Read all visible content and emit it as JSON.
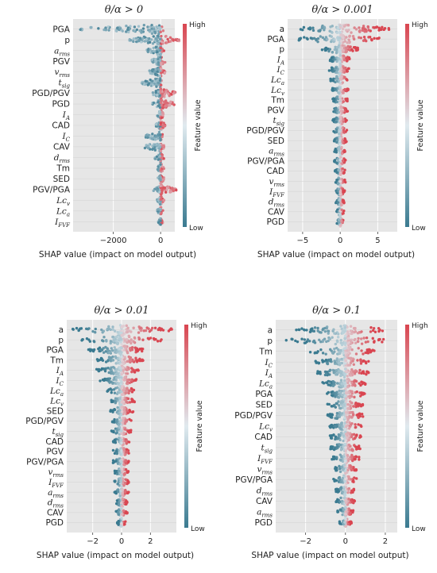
{
  "chart_data": [
    {
      "type": "scatter",
      "subtype": "shap-beeswarm",
      "title": "θ/α > 0",
      "xlabel": "SHAP value (impact on model output)",
      "xlim": [
        -3700,
        600
      ],
      "xticks": [
        -2000,
        0
      ],
      "xtick_labels": [
        "−2000",
        "0"
      ],
      "colorbar": {
        "label": "Feature value",
        "high": "High",
        "low": "Low"
      },
      "features": [
        {
          "label": "PGA",
          "spread": [
            -3500,
            200
          ]
        },
        {
          "label": "p",
          "spread": [
            -1400,
            800
          ]
        },
        {
          "label": "a_rms",
          "spread": [
            -600,
            150
          ]
        },
        {
          "label": "PGV",
          "spread": [
            -400,
            200
          ]
        },
        {
          "label": "v_rms",
          "spread": [
            -500,
            200
          ]
        },
        {
          "label": "t_sig",
          "spread": [
            -800,
            100
          ]
        },
        {
          "label": "PGD/PGV",
          "spread": [
            -350,
            650
          ]
        },
        {
          "label": "PGD",
          "spread": [
            -350,
            600
          ]
        },
        {
          "label": "I_A",
          "spread": [
            -150,
            150
          ]
        },
        {
          "label": "CAD",
          "spread": [
            -200,
            200
          ]
        },
        {
          "label": "I_C",
          "spread": [
            -650,
            100
          ]
        },
        {
          "label": "CAV",
          "spread": [
            -700,
            150
          ]
        },
        {
          "label": "d_rms",
          "spread": [
            -250,
            150
          ]
        },
        {
          "label": "Tm",
          "spread": [
            -150,
            150
          ]
        },
        {
          "label": "SED",
          "spread": [
            -150,
            150
          ]
        },
        {
          "label": "PGV/PGA",
          "spread": [
            -300,
            700
          ]
        },
        {
          "label": "Lc_v",
          "spread": [
            -150,
            150
          ]
        },
        {
          "label": "Lc_a",
          "spread": [
            -150,
            100
          ]
        },
        {
          "label": "I_FVF",
          "spread": [
            -100,
            100
          ]
        }
      ]
    },
    {
      "type": "scatter",
      "subtype": "shap-beeswarm",
      "title": "θ/α > 0.001",
      "xlabel": "SHAP value (impact on model output)",
      "xlim": [
        -7,
        7.6
      ],
      "xticks": [
        -5,
        0,
        5
      ],
      "xtick_labels": [
        "−5",
        "0",
        "5"
      ],
      "colorbar": {
        "label": "Feature value",
        "high": "High",
        "low": "Low"
      },
      "features": [
        {
          "label": "a",
          "spread": [
            -5.5,
            6.5
          ]
        },
        {
          "label": "PGA",
          "spread": [
            -6,
            5.5
          ]
        },
        {
          "label": "p",
          "spread": [
            -2.5,
            2.5
          ]
        },
        {
          "label": "I_A",
          "spread": [
            -1.5,
            1.5
          ]
        },
        {
          "label": "I_C",
          "spread": [
            -1.5,
            1.2
          ]
        },
        {
          "label": "Lc_a",
          "spread": [
            -1.3,
            1.3
          ]
        },
        {
          "label": "Lc_v",
          "spread": [
            -1.2,
            1.2
          ]
        },
        {
          "label": "Tm",
          "spread": [
            -1.0,
            1.0
          ]
        },
        {
          "label": "PGV",
          "spread": [
            -1.0,
            1.0
          ]
        },
        {
          "label": "t_sig",
          "spread": [
            -1.0,
            1.0
          ]
        },
        {
          "label": "PGD/PGV",
          "spread": [
            -0.9,
            0.9
          ]
        },
        {
          "label": "SED",
          "spread": [
            -0.9,
            0.9
          ]
        },
        {
          "label": "a_rms",
          "spread": [
            -0.8,
            0.8
          ]
        },
        {
          "label": "PGV/PGA",
          "spread": [
            -0.8,
            0.8
          ]
        },
        {
          "label": "CAD",
          "spread": [
            -0.7,
            0.7
          ]
        },
        {
          "label": "v_rms",
          "spread": [
            -0.7,
            0.7
          ]
        },
        {
          "label": "I_FVF",
          "spread": [
            -0.6,
            0.6
          ]
        },
        {
          "label": "d_rms",
          "spread": [
            -0.6,
            0.6
          ]
        },
        {
          "label": "CAV",
          "spread": [
            -0.5,
            0.5
          ]
        },
        {
          "label": "PGD",
          "spread": [
            -0.5,
            0.5
          ]
        }
      ]
    },
    {
      "type": "scatter",
      "subtype": "shap-beeswarm",
      "title": "θ/α > 0.01",
      "xlabel": "SHAP value (impact on model output)",
      "xlim": [
        -3.8,
        3.8
      ],
      "xticks": [
        -2,
        0,
        2
      ],
      "xtick_labels": [
        "−2",
        "0",
        "2"
      ],
      "colorbar": {
        "label": "Feature value",
        "high": "High",
        "low": "Low"
      },
      "features": [
        {
          "label": "a",
          "spread": [
            -3.5,
            3.5
          ]
        },
        {
          "label": "p",
          "spread": [
            -2.8,
            2.8
          ]
        },
        {
          "label": "PGA",
          "spread": [
            -2.3,
            1.5
          ]
        },
        {
          "label": "Tm",
          "spread": [
            -1.8,
            1.5
          ]
        },
        {
          "label": "I_A",
          "spread": [
            -1.8,
            1.2
          ]
        },
        {
          "label": "I_C",
          "spread": [
            -1.5,
            1.2
          ]
        },
        {
          "label": "Lc_a",
          "spread": [
            -1.0,
            1.0
          ]
        },
        {
          "label": "Lc_v",
          "spread": [
            -0.9,
            0.9
          ]
        },
        {
          "label": "SED",
          "spread": [
            -0.8,
            0.8
          ]
        },
        {
          "label": "PGD/PGV",
          "spread": [
            -0.7,
            0.7
          ]
        },
        {
          "label": "t_sig",
          "spread": [
            -0.7,
            0.7
          ]
        },
        {
          "label": "CAD",
          "spread": [
            -0.6,
            0.6
          ]
        },
        {
          "label": "PGV",
          "spread": [
            -0.6,
            0.6
          ]
        },
        {
          "label": "PGV/PGA",
          "spread": [
            -0.6,
            0.6
          ]
        },
        {
          "label": "v_rms",
          "spread": [
            -0.5,
            0.5
          ]
        },
        {
          "label": "I_FVF",
          "spread": [
            -0.5,
            0.5
          ]
        },
        {
          "label": "a_rms",
          "spread": [
            -0.5,
            0.5
          ]
        },
        {
          "label": "d_rms",
          "spread": [
            -0.4,
            0.4
          ]
        },
        {
          "label": "CAV",
          "spread": [
            -0.4,
            0.4
          ]
        },
        {
          "label": "PGD",
          "spread": [
            -0.3,
            0.3
          ]
        }
      ]
    },
    {
      "type": "scatter",
      "subtype": "shap-beeswarm",
      "title": "θ/α > 0.1",
      "xlabel": "SHAP value (impact on model output)",
      "xlim": [
        -3.5,
        2.6
      ],
      "xticks": [
        -2,
        0,
        2
      ],
      "xtick_labels": [
        "−2",
        "0",
        "2"
      ],
      "colorbar": {
        "label": "Feature value",
        "high": "High",
        "low": "Low"
      },
      "features": [
        {
          "label": "a",
          "spread": [
            -2.5,
            2.0
          ]
        },
        {
          "label": "p",
          "spread": [
            -3.0,
            2.0
          ]
        },
        {
          "label": "Tm",
          "spread": [
            -1.8,
            1.5
          ]
        },
        {
          "label": "I_C",
          "spread": [
            -1.5,
            1.2
          ]
        },
        {
          "label": "I_A",
          "spread": [
            -1.5,
            1.2
          ]
        },
        {
          "label": "Lc_a",
          "spread": [
            -1.2,
            1.0
          ]
        },
        {
          "label": "PGA",
          "spread": [
            -1.0,
            1.0
          ]
        },
        {
          "label": "SED",
          "spread": [
            -0.9,
            0.9
          ]
        },
        {
          "label": "PGD/PGV",
          "spread": [
            -0.9,
            0.9
          ]
        },
        {
          "label": "Lc_v",
          "spread": [
            -0.8,
            0.8
          ]
        },
        {
          "label": "CAD",
          "spread": [
            -0.8,
            0.8
          ]
        },
        {
          "label": "t_sig",
          "spread": [
            -0.8,
            0.8
          ]
        },
        {
          "label": "I_FVF",
          "spread": [
            -0.7,
            0.7
          ]
        },
        {
          "label": "v_rms",
          "spread": [
            -0.6,
            0.6
          ]
        },
        {
          "label": "PGV/PGA",
          "spread": [
            -0.6,
            0.6
          ]
        },
        {
          "label": "d_rms",
          "spread": [
            -0.5,
            0.5
          ]
        },
        {
          "label": "CAV",
          "spread": [
            -0.5,
            0.5
          ]
        },
        {
          "label": "a_rms",
          "spread": [
            -0.4,
            0.4
          ]
        },
        {
          "label": "PGD",
          "spread": [
            -0.3,
            0.3
          ]
        }
      ]
    }
  ],
  "colors": {
    "high": "#d94550",
    "low": "#3a7a90",
    "mid": "#e0eaef",
    "panel_bg": "#e6e6e6",
    "grid": "#ffffff"
  }
}
